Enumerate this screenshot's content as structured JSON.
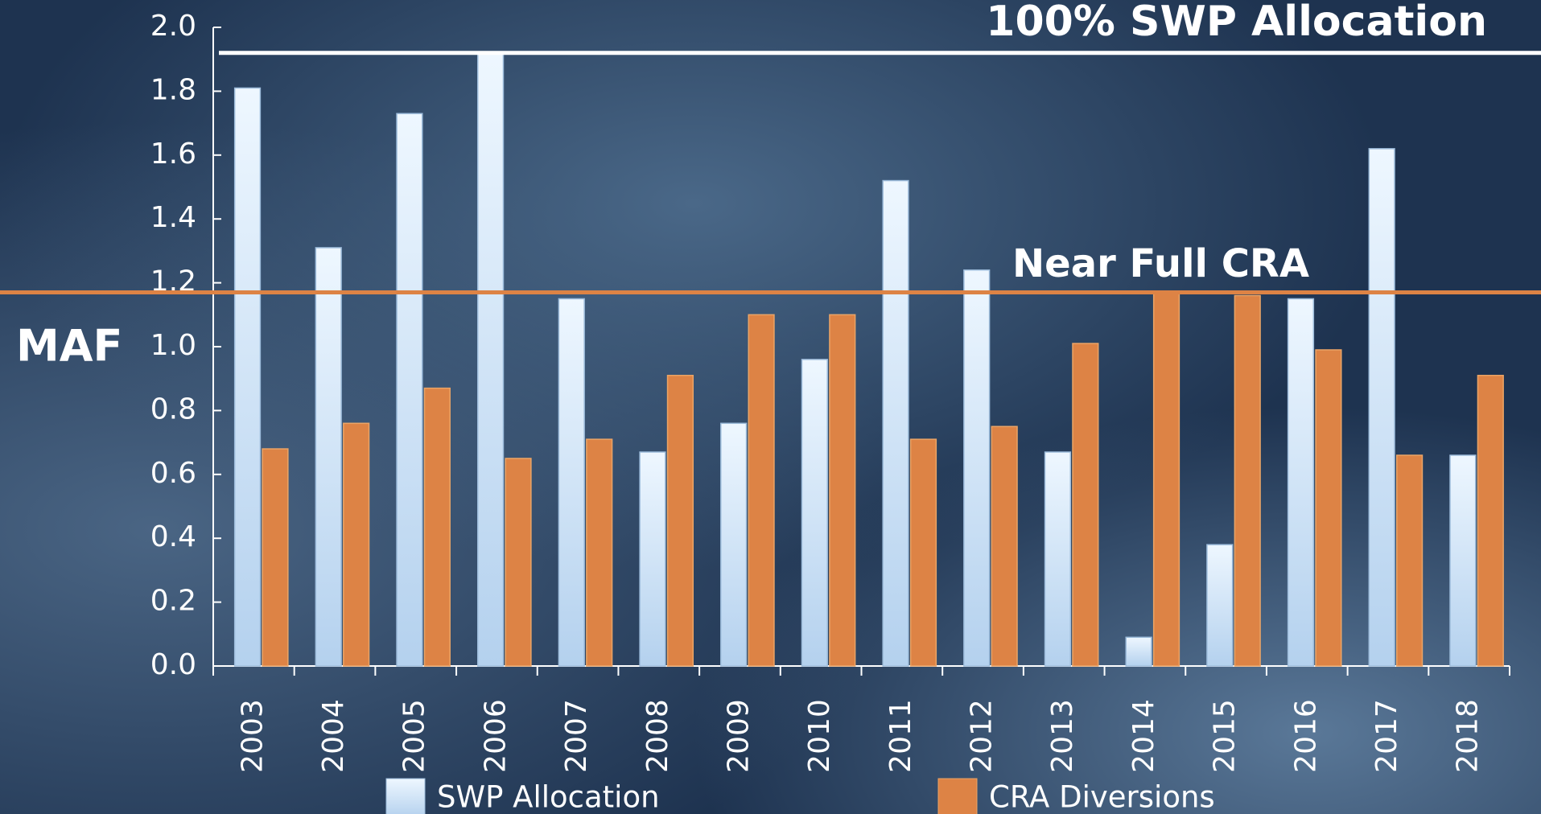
{
  "chart_data": {
    "type": "bar",
    "ylabel": "MAF",
    "categories": [
      "2003",
      "2004",
      "2005",
      "2006",
      "2007",
      "2008",
      "2009",
      "2010",
      "2011",
      "2012",
      "2013",
      "2014",
      "2015",
      "2016",
      "2017",
      "2018"
    ],
    "series": [
      {
        "name": "SWP Allocation",
        "color": "#cfe4f8",
        "values": [
          1.81,
          1.31,
          1.73,
          1.92,
          1.15,
          0.67,
          0.76,
          0.96,
          1.52,
          1.24,
          0.67,
          0.09,
          0.38,
          1.15,
          1.62,
          0.66
        ]
      },
      {
        "name": "CRA Diversions",
        "color": "#dd8345",
        "values": [
          0.68,
          0.76,
          0.87,
          0.65,
          0.71,
          0.91,
          1.1,
          1.1,
          0.71,
          0.75,
          1.01,
          1.17,
          1.16,
          0.99,
          0.66,
          0.91
        ]
      }
    ],
    "ylim": [
      0,
      2
    ],
    "yticks": [
      {
        "value": 0,
        "label": "0.0"
      },
      0.2,
      0.4,
      0.6,
      0.8,
      {
        "value": 1,
        "label": "1.0"
      },
      1.2,
      1.4,
      1.6,
      1.8,
      {
        "value": 2,
        "label": "2.0"
      }
    ],
    "reference_lines": [
      {
        "label": "100% SWP Allocation",
        "value": 1.92,
        "color": "#ffffff"
      },
      {
        "label": "Near Full CRA",
        "value": 1.17,
        "color": "#dd8345"
      }
    ]
  }
}
